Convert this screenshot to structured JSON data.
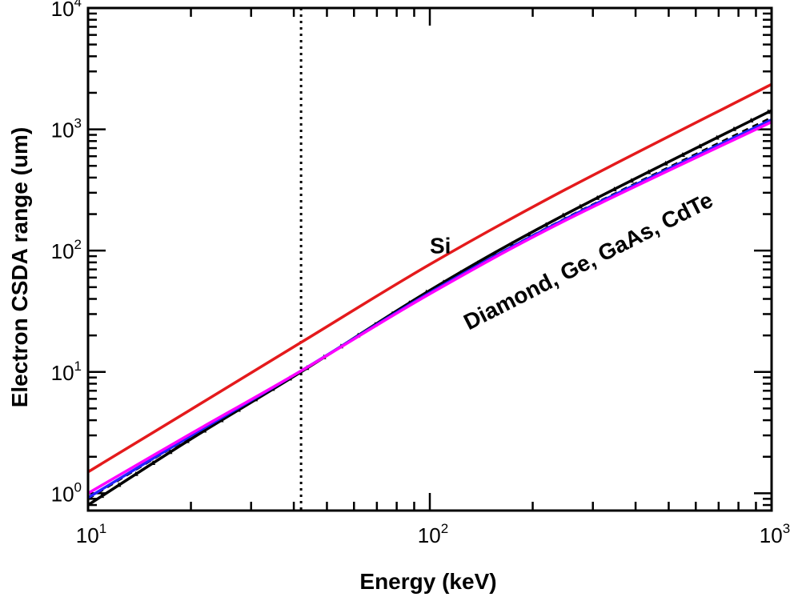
{
  "chart_data": {
    "type": "line",
    "title": "",
    "xlabel": "Energy (keV)",
    "ylabel": "Electron CSDA range (um)",
    "xscale": "log",
    "yscale": "log",
    "xlim": [
      10,
      1000
    ],
    "ylim": [
      0.72,
      10000
    ],
    "x_ticks": [
      {
        "value": 10,
        "base": "10",
        "exp": "1"
      },
      {
        "value": 100,
        "base": "10",
        "exp": "2"
      },
      {
        "value": 1000,
        "base": "10",
        "exp": "3"
      }
    ],
    "y_ticks": [
      {
        "value": 1,
        "base": "10",
        "exp": "0"
      },
      {
        "value": 10,
        "base": "10",
        "exp": "1"
      },
      {
        "value": 100,
        "base": "10",
        "exp": "2"
      },
      {
        "value": 1000,
        "base": "10",
        "exp": "3"
      },
      {
        "value": 10000,
        "base": "10",
        "exp": "4"
      }
    ],
    "vline": {
      "x": 42,
      "style": "dotted",
      "color": "#000000"
    },
    "series": [
      {
        "name": "Si",
        "color": "#e41a1c",
        "x": [
          10,
          20,
          42,
          100,
          250,
          1000
        ],
        "values": [
          1.5,
          4.9,
          17.5,
          77,
          320,
          2350
        ]
      },
      {
        "name": "Diamond",
        "color": "#000000",
        "style": "solid-triangles",
        "x": [
          10,
          20,
          42,
          100,
          250,
          1000
        ],
        "values": [
          0.8,
          2.8,
          10.0,
          47,
          200,
          1430
        ]
      },
      {
        "name": "Ge",
        "color": "#000000",
        "style": "dashed",
        "x": [
          10,
          20,
          42,
          100,
          250,
          1000
        ],
        "values": [
          0.9,
          2.95,
          10.1,
          45,
          185,
          1250
        ]
      },
      {
        "name": "GaAs",
        "color": "#2222ff",
        "x": [
          10,
          20,
          42,
          100,
          250,
          1000
        ],
        "values": [
          0.92,
          2.98,
          10.2,
          45,
          183,
          1200
        ]
      },
      {
        "name": "CdTe",
        "color": "#ff00ff",
        "x": [
          10,
          20,
          42,
          100,
          250,
          1000
        ],
        "values": [
          1.0,
          3.1,
          10.2,
          44,
          178,
          1150
        ]
      }
    ],
    "annotations": [
      {
        "text": "Si",
        "x": 100,
        "y": 95,
        "rotate": 0
      },
      {
        "text": "Diamond, Ge, GaAs, CdTe",
        "x": 130,
        "y": 22,
        "rotate": -27
      }
    ]
  }
}
